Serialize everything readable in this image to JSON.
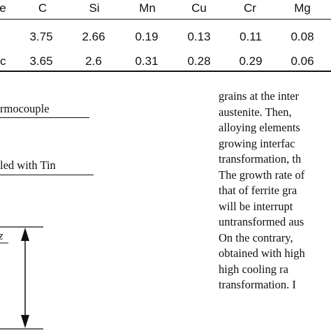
{
  "table": {
    "headers": [
      "e",
      "C",
      "Si",
      "Mn",
      "Cu",
      "Cr",
      "Mg"
    ],
    "rows": [
      {
        "label": "",
        "values": [
          "3.75",
          "2.66",
          "0.19",
          "0.13",
          "0.11",
          "0.08"
        ]
      },
      {
        "label": "c",
        "values": [
          "3.65",
          "2.6",
          "0.31",
          "0.28",
          "0.29",
          "0.06"
        ]
      }
    ]
  },
  "figure": {
    "thermocouple_label": "rmocouple",
    "tin_label": "led with Tin",
    "dimension_label": "z"
  },
  "text_column": {
    "lines": [
      "grains at the inter",
      "austenite.  Then,",
      "alloying elements",
      "growing   interfac",
      "transformation,  th",
      "The growth rate of",
      "that  of  ferrite  gra",
      "will   be   interrupt",
      "untransformed aus",
      "On  the  contrary,",
      "obtained with high",
      "high   cooling   ra",
      "transformation.  I"
    ]
  }
}
